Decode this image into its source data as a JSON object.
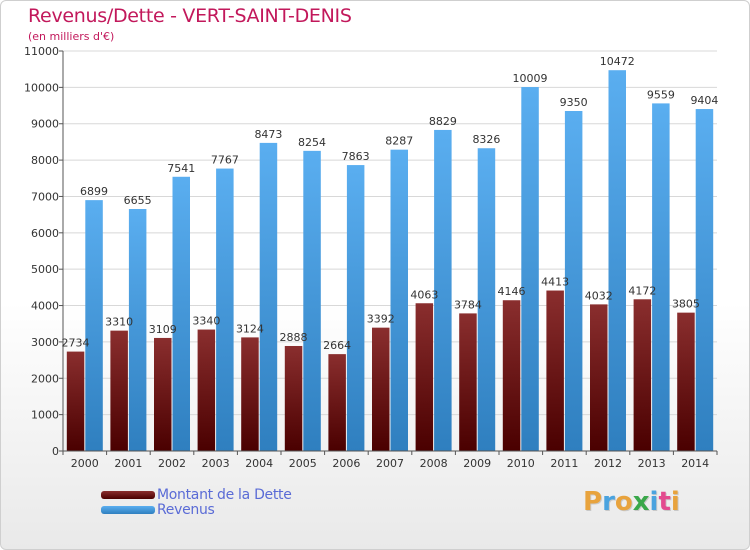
{
  "header": {
    "title": "Revenus/Dette - VERT-SAINT-DENIS",
    "subtitle": "(en milliers d'€)"
  },
  "legend": {
    "items": [
      {
        "label": "Montant de la Dette",
        "color": "#7a1f1f"
      },
      {
        "label": "Revenus",
        "color": "#4fa3e6"
      }
    ]
  },
  "logo": {
    "letters": [
      "P",
      "r",
      "o",
      "x",
      "i",
      "t",
      "i"
    ],
    "colors": [
      "#e8a33d",
      "#4aa3df",
      "#e8a33d",
      "#3aa84a",
      "#4aa3df",
      "#e34b8f",
      "#e8a33d"
    ]
  },
  "chart_data": {
    "type": "bar",
    "categories": [
      "2000",
      "2001",
      "2002",
      "2003",
      "2004",
      "2005",
      "2006",
      "2007",
      "2008",
      "2009",
      "2010",
      "2011",
      "2012",
      "2013",
      "2014"
    ],
    "series": [
      {
        "name": "Montant de la Dette",
        "values": [
          2734,
          3310,
          3109,
          3340,
          3124,
          2888,
          2664,
          3392,
          4063,
          3784,
          4146,
          4413,
          4032,
          4172,
          3805
        ],
        "labels": [
          "2734",
          "3310",
          "3109",
          "3340",
          "3124",
          "2888",
          "2664",
          "3392",
          "4063",
          "3784",
          "4146",
          "4413",
          "4032",
          "4172",
          "3805"
        ],
        "color_top": "#8a2e2e",
        "color_bottom": "#4a0000"
      },
      {
        "name": "Revenus",
        "values": [
          6899,
          6655,
          7541,
          7767,
          8473,
          8254,
          7863,
          8287,
          8829,
          8326,
          10009,
          9350,
          10472,
          9559,
          9404
        ],
        "labels": [
          "6899",
          "6655",
          "7541",
          "7767",
          "8473",
          "8254",
          "7863",
          "8287",
          "8829",
          "8326",
          "10009",
          "9350",
          "10472",
          "9559",
          "9404"
        ],
        "color_top": "#5aaef0",
        "color_bottom": "#2f7fbf"
      }
    ],
    "yticks": [
      0,
      1000,
      2000,
      3000,
      4000,
      5000,
      6000,
      7000,
      8000,
      9000,
      10000,
      11000
    ],
    "ylim": [
      0,
      11000
    ],
    "grid": true,
    "legend_position": "bottom-left"
  }
}
